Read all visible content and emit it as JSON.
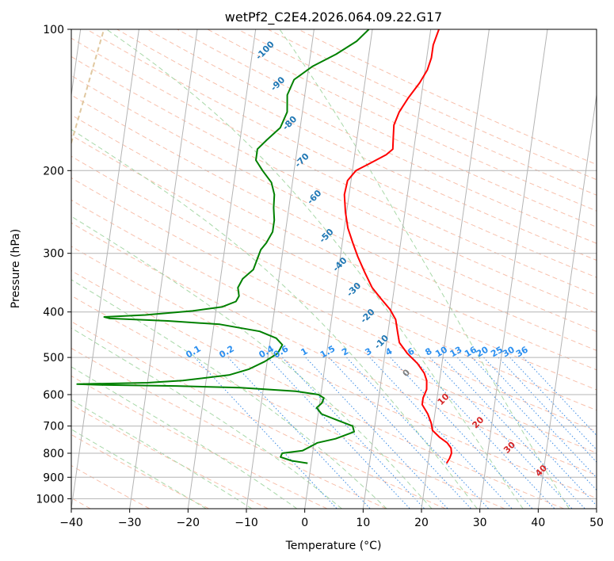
{
  "chart_data": {
    "type": "line",
    "subtype": "skew-t log-p diagram",
    "title": "wetPf2_C2E4.2026.064.09.22.G17",
    "xlabel": "Temperature (°C)",
    "ylabel": "Pressure (hPa)",
    "xlim": [
      -40,
      50
    ],
    "ylim": [
      1050,
      100
    ],
    "y_scale": "log",
    "grid": true,
    "x_ticks": [
      "−40",
      "−30",
      "−20",
      "−10",
      "0",
      "10",
      "20",
      "30",
      "40",
      "50"
    ],
    "y_ticks": [
      {
        "p": 100,
        "label": "100"
      },
      {
        "p": 200,
        "label": "200"
      },
      {
        "p": 300,
        "label": "300"
      },
      {
        "p": 400,
        "label": "400"
      },
      {
        "p": 500,
        "label": "500"
      },
      {
        "p": 600,
        "label": "600"
      },
      {
        "p": 700,
        "label": "700"
      },
      {
        "p": 800,
        "label": "800"
      },
      {
        "p": 900,
        "label": "900"
      },
      {
        "p": 1000,
        "label": "1000"
      }
    ],
    "series": [
      {
        "key": "temperature",
        "color": "#ff0000",
        "points": [
          {
            "p": 840,
            "t": 23.2
          },
          {
            "p": 820,
            "t": 23.6
          },
          {
            "p": 800,
            "t": 23.8
          },
          {
            "p": 780,
            "t": 23.6
          },
          {
            "p": 760,
            "t": 22.8
          },
          {
            "p": 740,
            "t": 21.4
          },
          {
            "p": 715,
            "t": 20.0
          },
          {
            "p": 690,
            "t": 19.6
          },
          {
            "p": 660,
            "t": 18.8
          },
          {
            "p": 630,
            "t": 17.6
          },
          {
            "p": 610,
            "t": 17.6
          },
          {
            "p": 585,
            "t": 18.0
          },
          {
            "p": 560,
            "t": 17.8
          },
          {
            "p": 540,
            "t": 17.2
          },
          {
            "p": 515,
            "t": 15.8
          },
          {
            "p": 490,
            "t": 13.8
          },
          {
            "p": 465,
            "t": 12.2
          },
          {
            "p": 440,
            "t": 11.6
          },
          {
            "p": 415,
            "t": 11.0
          },
          {
            "p": 395,
            "t": 9.8
          },
          {
            "p": 375,
            "t": 8.0
          },
          {
            "p": 355,
            "t": 6.2
          },
          {
            "p": 330,
            "t": 4.6
          },
          {
            "p": 305,
            "t": 3.0
          },
          {
            "p": 285,
            "t": 1.8
          },
          {
            "p": 265,
            "t": 0.6
          },
          {
            "p": 245,
            "t": -0.2
          },
          {
            "p": 225,
            "t": -0.8
          },
          {
            "p": 210,
            "t": -0.6
          },
          {
            "p": 200,
            "t": 0.6
          },
          {
            "p": 193,
            "t": 2.8
          },
          {
            "p": 185,
            "t": 5.4
          },
          {
            "p": 180,
            "t": 6.4
          },
          {
            "p": 170,
            "t": 6.2
          },
          {
            "p": 160,
            "t": 6.0
          },
          {
            "p": 150,
            "t": 6.6
          },
          {
            "p": 140,
            "t": 7.8
          },
          {
            "p": 130,
            "t": 9.4
          },
          {
            "p": 122,
            "t": 10.4
          },
          {
            "p": 115,
            "t": 10.8
          },
          {
            "p": 108,
            "t": 10.8
          },
          {
            "p": 100,
            "t": 11.4
          }
        ]
      },
      {
        "key": "dewpoint",
        "color": "#008000",
        "points": [
          {
            "p": 840,
            "t": -0.6
          },
          {
            "p": 830,
            "t": -3.4
          },
          {
            "p": 815,
            "t": -5.4
          },
          {
            "p": 800,
            "t": -5.2
          },
          {
            "p": 790,
            "t": -1.8
          },
          {
            "p": 775,
            "t": -0.6
          },
          {
            "p": 760,
            "t": 0.6
          },
          {
            "p": 745,
            "t": 3.6
          },
          {
            "p": 720,
            "t": 6.6
          },
          {
            "p": 700,
            "t": 6.2
          },
          {
            "p": 680,
            "t": 3.4
          },
          {
            "p": 660,
            "t": 0.6
          },
          {
            "p": 640,
            "t": -0.4
          },
          {
            "p": 625,
            "t": 0.4
          },
          {
            "p": 610,
            "t": 0.6
          },
          {
            "p": 600,
            "t": -0.4
          },
          {
            "p": 590,
            "t": -4.4
          },
          {
            "p": 580,
            "t": -14.0
          },
          {
            "p": 575,
            "t": -25.0
          },
          {
            "p": 572,
            "t": -38.0
          },
          {
            "p": 570,
            "t": -42.0
          },
          {
            "p": 566,
            "t": -30.0
          },
          {
            "p": 560,
            "t": -24.0
          },
          {
            "p": 545,
            "t": -16.2
          },
          {
            "p": 530,
            "t": -13.0
          },
          {
            "p": 510,
            "t": -10.4
          },
          {
            "p": 490,
            "t": -8.4
          },
          {
            "p": 470,
            "t": -7.8
          },
          {
            "p": 455,
            "t": -9.0
          },
          {
            "p": 440,
            "t": -12.0
          },
          {
            "p": 425,
            "t": -19.0
          },
          {
            "p": 418,
            "t": -28.0
          },
          {
            "p": 413,
            "t": -38.0
          },
          {
            "p": 410,
            "t": -39.0
          },
          {
            "p": 406,
            "t": -32.0
          },
          {
            "p": 398,
            "t": -24.0
          },
          {
            "p": 390,
            "t": -19.0
          },
          {
            "p": 380,
            "t": -16.8
          },
          {
            "p": 370,
            "t": -16.4
          },
          {
            "p": 355,
            "t": -16.8
          },
          {
            "p": 340,
            "t": -16.2
          },
          {
            "p": 325,
            "t": -14.6
          },
          {
            "p": 310,
            "t": -14.2
          },
          {
            "p": 295,
            "t": -13.8
          },
          {
            "p": 285,
            "t": -13.0
          },
          {
            "p": 270,
            "t": -12.2
          },
          {
            "p": 255,
            "t": -12.2
          },
          {
            "p": 240,
            "t": -12.6
          },
          {
            "p": 225,
            "t": -12.8
          },
          {
            "p": 212,
            "t": -13.6
          },
          {
            "p": 200,
            "t": -15.4
          },
          {
            "p": 190,
            "t": -16.8
          },
          {
            "p": 180,
            "t": -16.8
          },
          {
            "p": 172,
            "t": -15.4
          },
          {
            "p": 162,
            "t": -13.4
          },
          {
            "p": 150,
            "t": -12.6
          },
          {
            "p": 138,
            "t": -13.0
          },
          {
            "p": 128,
            "t": -12.2
          },
          {
            "p": 120,
            "t": -9.4
          },
          {
            "p": 113,
            "t": -5.6
          },
          {
            "p": 106,
            "t": -2.4
          },
          {
            "p": 100,
            "t": -0.6
          }
        ]
      }
    ],
    "reference_lines": {
      "isotherms_color": "#b4b4b4",
      "dry_adiabats_color": "#f8c0ac",
      "moist_adiabats_color": "#a8d8a8",
      "mixing_ratio_color": "#3c8ce6",
      "isohume_color": "#e0c8a0"
    },
    "annotations": {
      "dry_adiabat_labels": {
        "color": "#1f77b4",
        "items": [
          {
            "text": "-100",
            "p": 112,
            "t": -17.5
          },
          {
            "text": "-90",
            "p": 132,
            "t": -14.5
          },
          {
            "text": "-80",
            "p": 160,
            "t": -11.5
          },
          {
            "text": "-70",
            "p": 192,
            "t": -8.5
          },
          {
            "text": "-60",
            "p": 230,
            "t": -5.5
          },
          {
            "text": "-50",
            "p": 278,
            "t": -2.5
          },
          {
            "text": "-40",
            "p": 320,
            "t": 0.5
          },
          {
            "text": "-30",
            "p": 362,
            "t": 3.5
          },
          {
            "text": "-20",
            "p": 412,
            "t": 6.5
          },
          {
            "text": "-10",
            "p": 468,
            "t": 9.5
          },
          {
            "text": "0",
            "p": 545,
            "t": 14.5
          },
          {
            "text": "10",
            "p": 620,
            "t": 21.5
          },
          {
            "text": "20",
            "p": 695,
            "t": 28.0
          },
          {
            "text": "30",
            "p": 785,
            "t": 34.0
          },
          {
            "text": "40",
            "p": 880,
            "t": 40.0
          }
        ]
      },
      "mixing_ratio_labels": {
        "color": "#2a8ff0",
        "pressure": 500,
        "items": [
          {
            "text": "0.1",
            "t": -22.5
          },
          {
            "text": "0.2",
            "t": -16.8
          },
          {
            "text": "0.4",
            "t": -10.0
          },
          {
            "text": "0.6",
            "t": -7.5
          },
          {
            "text": "1",
            "t": -3.5
          },
          {
            "text": "1.5",
            "t": 0.5
          },
          {
            "text": "2",
            "t": 3.5
          },
          {
            "text": "3",
            "t": 7.5
          },
          {
            "text": "4",
            "t": 11.0
          },
          {
            "text": "6",
            "t": 14.8
          },
          {
            "text": "8",
            "t": 17.8
          },
          {
            "text": "10",
            "t": 20.0
          },
          {
            "text": "13",
            "t": 22.5
          },
          {
            "text": "16",
            "t": 25.0
          },
          {
            "text": "20",
            "t": 27.0
          },
          {
            "text": "25",
            "t": 29.5
          },
          {
            "text": "30",
            "t": 31.5
          },
          {
            "text": "36",
            "t": 33.8
          }
        ]
      }
    }
  }
}
